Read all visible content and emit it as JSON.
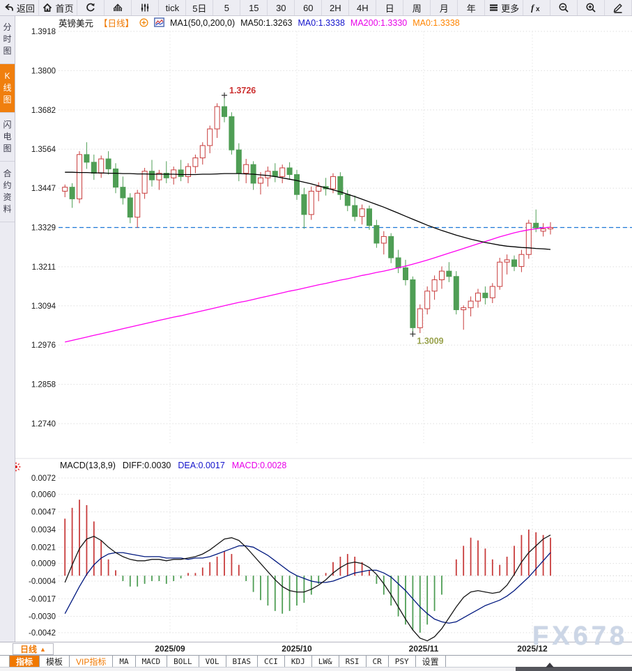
{
  "toolbar": {
    "items": [
      {
        "name": "back-button",
        "icon": "back-icon",
        "label": "返回"
      },
      {
        "name": "home-button",
        "icon": "home-icon",
        "label": "首页"
      },
      {
        "name": "refresh-button",
        "icon": "refresh-icon",
        "label": ""
      },
      {
        "name": "trend-chart-button",
        "icon": "bar-chart-icon",
        "label": ""
      },
      {
        "name": "kline-settings-button",
        "icon": "sliders-icon",
        "label": ""
      },
      {
        "name": "period-tick-button",
        "icon": "",
        "label": "tick"
      },
      {
        "name": "period-5day-button",
        "icon": "",
        "label": "5日"
      },
      {
        "name": "period-5min-button",
        "icon": "",
        "label": "5"
      },
      {
        "name": "period-15min-button",
        "icon": "",
        "label": "15"
      },
      {
        "name": "period-30min-button",
        "icon": "",
        "label": "30"
      },
      {
        "name": "period-60min-button",
        "icon": "",
        "label": "60"
      },
      {
        "name": "period-2h-button",
        "icon": "",
        "label": "2H"
      },
      {
        "name": "period-4h-button",
        "icon": "",
        "label": "4H"
      },
      {
        "name": "period-day-button",
        "icon": "",
        "label": "日"
      },
      {
        "name": "period-week-button",
        "icon": "",
        "label": "周"
      },
      {
        "name": "period-month-button",
        "icon": "",
        "label": "月"
      },
      {
        "name": "period-year-button",
        "icon": "",
        "label": "年"
      },
      {
        "name": "more-menu-button",
        "icon": "hamburger-icon",
        "label": "更多"
      },
      {
        "name": "formula-button",
        "icon": "fx-icon",
        "label": ""
      },
      {
        "name": "zoom-out-button",
        "icon": "zoom-out-icon",
        "label": ""
      },
      {
        "name": "zoom-in-button",
        "icon": "zoom-in-icon",
        "label": ""
      },
      {
        "name": "draw-tool-button",
        "icon": "pencil-icon",
        "label": ""
      }
    ]
  },
  "sidebar": {
    "items": [
      {
        "name": "sidebar-item-time-chart",
        "label": "分时图",
        "active": false
      },
      {
        "name": "sidebar-item-kline-chart",
        "label": "K线图",
        "active": true
      },
      {
        "name": "sidebar-item-lightning-chart",
        "label": "闪电图",
        "active": false
      },
      {
        "name": "sidebar-item-contract-info",
        "label": "合约资料",
        "active": false
      }
    ]
  },
  "chart_header": {
    "symbol": "英镑美元",
    "period": "【日线】",
    "ma_settings": "MA1(50,0,200,0)",
    "ma50": "MA50:1.3263",
    "ma0_blue": "MA0:1.3338",
    "ma200": "MA200:1.3330",
    "ma0_orange": "MA0:1.3338"
  },
  "macd_header": {
    "title": "MACD(13,8,9)",
    "diff": "DIFF:0.0030",
    "dea": "DEA:0.0017",
    "macd": "MACD:0.0028"
  },
  "bottom": {
    "period_button": "日线",
    "period_arrow": "▲",
    "tabs": [
      {
        "label": "指标",
        "style": "active",
        "latin": false
      },
      {
        "label": "模板",
        "style": "",
        "latin": false
      },
      {
        "label": "VIP指标",
        "style": "vip",
        "latin": false
      },
      {
        "label": "MA",
        "style": "",
        "latin": true
      },
      {
        "label": "MACD",
        "style": "",
        "latin": true
      },
      {
        "label": "BOLL",
        "style": "",
        "latin": true
      },
      {
        "label": "VOL",
        "style": "",
        "latin": true
      },
      {
        "label": "BIAS",
        "style": "",
        "latin": true
      },
      {
        "label": "CCI",
        "style": "",
        "latin": true
      },
      {
        "label": "KDJ",
        "style": "",
        "latin": true
      },
      {
        "label": "LW&",
        "style": "",
        "latin": true
      },
      {
        "label": "RSI",
        "style": "",
        "latin": true
      },
      {
        "label": "CR",
        "style": "",
        "latin": true
      },
      {
        "label": "PSY",
        "style": "",
        "latin": true
      },
      {
        "label": "设置",
        "style": "",
        "latin": false
      }
    ]
  },
  "watermark": "FX678",
  "colors": {
    "up": "#c83c3c",
    "down": "#4f9e55",
    "ma50": "#000000",
    "ma200": "#ff00f0",
    "diff": "#151515",
    "dea": "#00187f",
    "price_line": "#1d78d8",
    "grid": "#dedede",
    "accent": "#f07800",
    "high_label": "#cc3030",
    "low_label": "#99a24d"
  },
  "chart_data": {
    "type": "candlestick",
    "title": "英镑美元 日线 (GBP/USD Daily)",
    "main": {
      "y_ticks": [
        "1.3918",
        "1.3800",
        "1.3682",
        "1.3564",
        "1.3447",
        "1.3329",
        "1.3211",
        "1.3094",
        "1.2976",
        "1.2858",
        "1.2740"
      ],
      "ylim": [
        1.274,
        1.3918
      ],
      "current_price": 1.3329,
      "month_labels": [
        {
          "label": "2025/09",
          "idx": 14.5
        },
        {
          "label": "2025/10",
          "idx": 32
        },
        {
          "label": "2025/11",
          "idx": 49.5
        },
        {
          "label": "2025/12",
          "idx": 64.5
        }
      ],
      "annotations": {
        "high": {
          "label": "1.3726",
          "idx": 22,
          "value": 1.3726
        },
        "low": {
          "label": "1.3009",
          "idx": 48,
          "value": 1.3009
        }
      },
      "candles": [
        [
          1.3438,
          1.3458,
          1.342,
          1.345
        ],
        [
          1.345,
          1.3462,
          1.3388,
          1.3415
        ],
        [
          1.3415,
          1.3558,
          1.3402,
          1.3548
        ],
        [
          1.3548,
          1.3585,
          1.3505,
          1.3525
        ],
        [
          1.3525,
          1.3548,
          1.3472,
          1.3492
        ],
        [
          1.3492,
          1.3545,
          1.3478,
          1.3535
        ],
        [
          1.3535,
          1.3558,
          1.3488,
          1.3505
        ],
        [
          1.3505,
          1.3522,
          1.3432,
          1.345
        ],
        [
          1.345,
          1.3482,
          1.3398,
          1.3418
        ],
        [
          1.3418,
          1.3432,
          1.3342,
          1.336
        ],
        [
          1.336,
          1.3442,
          1.3328,
          1.3432
        ],
        [
          1.3432,
          1.3508,
          1.3415,
          1.3498
        ],
        [
          1.3498,
          1.3532,
          1.3452,
          1.3472
        ],
        [
          1.3472,
          1.3502,
          1.3442,
          1.3492
        ],
        [
          1.3492,
          1.3528,
          1.3462,
          1.3478
        ],
        [
          1.3478,
          1.3512,
          1.3458,
          1.3502
        ],
        [
          1.3502,
          1.3532,
          1.3468,
          1.3482
        ],
        [
          1.3482,
          1.3522,
          1.3462,
          1.3512
        ],
        [
          1.3512,
          1.3548,
          1.3492,
          1.3538
        ],
        [
          1.3538,
          1.3585,
          1.3518,
          1.3575
        ],
        [
          1.3575,
          1.3635,
          1.3552,
          1.3625
        ],
        [
          1.3625,
          1.3702,
          1.3598,
          1.3692
        ],
        [
          1.3692,
          1.3726,
          1.3645,
          1.3662
        ],
        [
          1.3662,
          1.3675,
          1.3548,
          1.3562
        ],
        [
          1.3562,
          1.3582,
          1.3468,
          1.3492
        ],
        [
          1.3492,
          1.3535,
          1.3462,
          1.3518
        ],
        [
          1.3518,
          1.3528,
          1.3442,
          1.3462
        ],
        [
          1.3462,
          1.3495,
          1.3428,
          1.3478
        ],
        [
          1.3478,
          1.3512,
          1.3452,
          1.3498
        ],
        [
          1.3498,
          1.3522,
          1.3465,
          1.3482
        ],
        [
          1.3482,
          1.3518,
          1.3462,
          1.3508
        ],
        [
          1.3508,
          1.3525,
          1.3472,
          1.3488
        ],
        [
          1.3488,
          1.3502,
          1.3412,
          1.3428
        ],
        [
          1.3428,
          1.3448,
          1.3325,
          1.3368
        ],
        [
          1.3368,
          1.3452,
          1.3352,
          1.3438
        ],
        [
          1.3438,
          1.3465,
          1.3408,
          1.3452
        ],
        [
          1.3452,
          1.3478,
          1.3425,
          1.3445
        ],
        [
          1.3445,
          1.3492,
          1.3432,
          1.3482
        ],
        [
          1.3482,
          1.3495,
          1.3412,
          1.3428
        ],
        [
          1.3428,
          1.3442,
          1.3378,
          1.3395
        ],
        [
          1.3395,
          1.3425,
          1.3348,
          1.3362
        ],
        [
          1.3362,
          1.3398,
          1.3338,
          1.3385
        ],
        [
          1.3385,
          1.3395,
          1.3322,
          1.3335
        ],
        [
          1.3335,
          1.3352,
          1.3268,
          1.3282
        ],
        [
          1.3282,
          1.3318,
          1.3248,
          1.3302
        ],
        [
          1.3302,
          1.3312,
          1.3222,
          1.3238
        ],
        [
          1.3238,
          1.3262,
          1.3192,
          1.3208
        ],
        [
          1.3208,
          1.3232,
          1.3155,
          1.3172
        ],
        [
          1.3172,
          1.3182,
          1.3009,
          1.3028
        ],
        [
          1.3028,
          1.3098,
          1.3012,
          1.3085
        ],
        [
          1.3085,
          1.3152,
          1.3068,
          1.3138
        ],
        [
          1.3138,
          1.3185,
          1.3112,
          1.3172
        ],
        [
          1.3172,
          1.3212,
          1.3145,
          1.3198
        ],
        [
          1.3198,
          1.3225,
          1.3165,
          1.3182
        ],
        [
          1.3182,
          1.3198,
          1.3068,
          1.3082
        ],
        [
          1.3082,
          1.3095,
          1.3022,
          1.3088
        ],
        [
          1.3088,
          1.3122,
          1.3062,
          1.3108
        ],
        [
          1.3108,
          1.3145,
          1.3088,
          1.3132
        ],
        [
          1.3132,
          1.3152,
          1.3098,
          1.3118
        ],
        [
          1.3118,
          1.3162,
          1.3102,
          1.3152
        ],
        [
          1.3152,
          1.3238,
          1.3142,
          1.3225
        ],
        [
          1.3225,
          1.3248,
          1.3188,
          1.3232
        ],
        [
          1.3232,
          1.3245,
          1.3198,
          1.3212
        ],
        [
          1.3212,
          1.3262,
          1.3195,
          1.3248
        ],
        [
          1.3248,
          1.3352,
          1.3235,
          1.3342
        ],
        [
          1.3342,
          1.3383,
          1.3315,
          1.3328
        ],
        [
          1.3318,
          1.3342,
          1.3302,
          1.3325
        ],
        [
          1.3325,
          1.3345,
          1.3308,
          1.3329
        ]
      ],
      "ma50": [
        1.3495,
        1.3495,
        1.3494,
        1.3494,
        1.3493,
        1.3493,
        1.3492,
        1.3492,
        1.3491,
        1.3491,
        1.349,
        1.349,
        1.3489,
        1.3489,
        1.3489,
        1.3489,
        1.3488,
        1.3488,
        1.3488,
        1.3489,
        1.3489,
        1.349,
        1.3491,
        1.3491,
        1.3491,
        1.349,
        1.3489,
        1.3487,
        1.3485,
        1.3482,
        1.3478,
        1.3474,
        1.347,
        1.3465,
        1.346,
        1.3454,
        1.3448,
        1.3442,
        1.3436,
        1.3429,
        1.3422,
        1.3414,
        1.3406,
        1.3398,
        1.339,
        1.3381,
        1.3372,
        1.3363,
        1.3354,
        1.3345,
        1.3336,
        1.3328,
        1.332,
        1.3313,
        1.3306,
        1.33,
        1.3294,
        1.3289,
        1.3284,
        1.328,
        1.3276,
        1.3273,
        1.3271,
        1.3269,
        1.3268,
        1.3266,
        1.3265,
        1.3263
      ],
      "ma200": [
        1.2985,
        1.299,
        1.2995,
        1.3,
        1.3005,
        1.301,
        1.3015,
        1.302,
        1.3025,
        1.303,
        1.3035,
        1.304,
        1.3045,
        1.305,
        1.3055,
        1.306,
        1.3064,
        1.3069,
        1.3074,
        1.3079,
        1.3084,
        1.3089,
        1.3094,
        1.3099,
        1.3104,
        1.3108,
        1.3113,
        1.3118,
        1.3123,
        1.3128,
        1.3133,
        1.3138,
        1.3142,
        1.3147,
        1.3152,
        1.3157,
        1.3161,
        1.3166,
        1.3171,
        1.3175,
        1.318,
        1.3185,
        1.3189,
        1.3194,
        1.3198,
        1.3203,
        1.3208,
        1.3213,
        1.3219,
        1.3225,
        1.3231,
        1.3238,
        1.3245,
        1.3252,
        1.3259,
        1.3266,
        1.3273,
        1.328,
        1.3287,
        1.3294,
        1.3301,
        1.3307,
        1.3313,
        1.3318,
        1.3322,
        1.3325,
        1.3328,
        1.333
      ]
    },
    "macd": {
      "y_ticks": [
        "0.0072",
        "0.0060",
        "0.0047",
        "0.0034",
        "0.0021",
        "0.0009",
        "-0.0004",
        "-0.0017",
        "-0.0030",
        "-0.0042"
      ],
      "ylim": [
        -0.0042,
        0.0072
      ],
      "diff": [
        -0.0005,
        0.0008,
        0.002,
        0.0027,
        0.0029,
        0.0026,
        0.0021,
        0.0017,
        0.0014,
        0.0012,
        0.0011,
        0.0011,
        0.0012,
        0.0012,
        0.0011,
        0.0012,
        0.0012,
        0.0013,
        0.0014,
        0.0016,
        0.0019,
        0.0023,
        0.0027,
        0.0028,
        0.0026,
        0.0021,
        0.0015,
        0.0009,
        0.0003,
        -0.0003,
        -0.0008,
        -0.0011,
        -0.0012,
        -0.0012,
        -0.001,
        -0.0007,
        -0.0003,
        0.0002,
        0.0006,
        0.0009,
        0.001,
        0.0009,
        0.0006,
        0.0001,
        -0.0006,
        -0.0014,
        -0.0023,
        -0.0032,
        -0.004,
        -0.0046,
        -0.0048,
        -0.0045,
        -0.0039,
        -0.0031,
        -0.0023,
        -0.0016,
        -0.0012,
        -0.0011,
        -0.0012,
        -0.0013,
        -0.0012,
        -0.0007,
        0.0001,
        0.001,
        0.0017,
        0.0022,
        0.0027,
        0.003
      ],
      "dea": [
        -0.0028,
        -0.0018,
        -0.0008,
        0.0001,
        0.0008,
        0.0013,
        0.0016,
        0.0017,
        0.0017,
        0.0016,
        0.0015,
        0.0014,
        0.0014,
        0.0014,
        0.0013,
        0.0013,
        0.0013,
        0.0012,
        0.0013,
        0.0013,
        0.0014,
        0.0016,
        0.0018,
        0.002,
        0.0022,
        0.0022,
        0.0021,
        0.0018,
        0.0015,
        0.0011,
        0.0007,
        0.0003,
        0.0,
        -0.0002,
        -0.0004,
        -0.0005,
        -0.0005,
        -0.0004,
        -0.0002,
        0.0,
        0.0002,
        0.0003,
        0.0004,
        0.0004,
        0.0002,
        -0.0001,
        -0.0006,
        -0.0011,
        -0.0017,
        -0.0023,
        -0.0028,
        -0.0032,
        -0.0034,
        -0.0035,
        -0.0034,
        -0.0031,
        -0.0028,
        -0.0025,
        -0.0022,
        -0.002,
        -0.0018,
        -0.0015,
        -0.0011,
        -0.0006,
        -0.0001,
        0.0005,
        0.0011,
        0.0017
      ],
      "hist": [
        0.0042,
        0.005,
        0.0056,
        0.0052,
        0.004,
        0.0026,
        0.0012,
        0.0004,
        -0.0004,
        -0.0008,
        -0.0008,
        -0.0006,
        -0.0004,
        -0.0004,
        -0.0006,
        -0.0004,
        -0.0002,
        0.0002,
        0.0002,
        0.0006,
        0.001,
        0.0014,
        0.0018,
        0.0016,
        0.0008,
        -0.0004,
        -0.0012,
        -0.0018,
        -0.0022,
        -0.0026,
        -0.0028,
        -0.0026,
        -0.0022,
        -0.002,
        -0.0014,
        -0.0006,
        0.0002,
        0.001,
        0.0014,
        0.0016,
        0.0014,
        0.001,
        0.0004,
        -0.0006,
        -0.0014,
        -0.0022,
        -0.003,
        -0.0036,
        -0.004,
        -0.0042,
        -0.0036,
        -0.0026,
        -0.0014,
        0.0,
        0.0012,
        0.0022,
        0.0028,
        0.0026,
        0.002,
        0.0012,
        0.0008,
        0.0014,
        0.0022,
        0.003,
        0.0034,
        0.0032,
        0.003,
        0.0028
      ]
    }
  }
}
